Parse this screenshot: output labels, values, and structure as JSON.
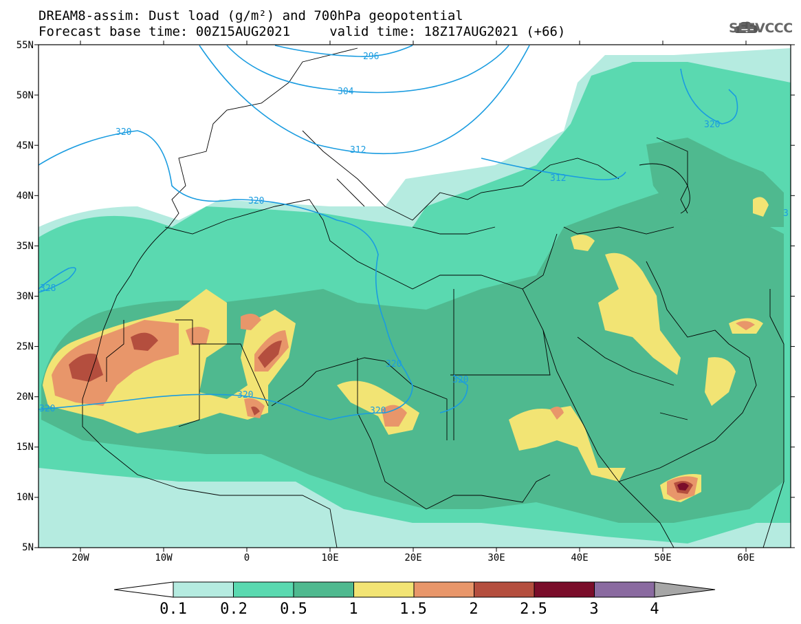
{
  "header": {
    "line1": "DREAM8-assim: Dust load (g/m²) and 700hPa geopotential",
    "line2": "Forecast base time: 00Z15AUG2021     valid time: 18Z17AUG2021 (+66)",
    "logo_text": "SEEVCCC"
  },
  "axes": {
    "lat_labels": [
      "55N",
      "50N",
      "45N",
      "40N",
      "35N",
      "30N",
      "25N",
      "20N",
      "15N",
      "10N",
      "5N"
    ],
    "lon_labels": [
      "20W",
      "10W",
      "0",
      "10E",
      "20E",
      "30E",
      "40E",
      "50E",
      "60E"
    ]
  },
  "contour_labels": [
    "296",
    "304",
    "312",
    "320",
    "320",
    "320",
    "328",
    "320",
    "320",
    "320",
    "320",
    "312",
    "320",
    "3"
  ],
  "colorbar": {
    "labels": [
      "0.1",
      "0.2",
      "0.5",
      "1",
      "1.5",
      "2",
      "2.5",
      "3",
      "4"
    ],
    "colors": [
      "#ffffff",
      "#b5ebe0",
      "#5ad9b0",
      "#4fb98f",
      "#f2e474",
      "#e8966a",
      "#b44e3e",
      "#7a0d2a",
      "#8a6aa0",
      "#a6a6a6"
    ]
  },
  "colors": {
    "c01": "#b5ebe0",
    "c02": "#5ad9b0",
    "c05": "#4fb98f",
    "c10": "#f2e474",
    "c15": "#e8966a",
    "c20": "#b44e3e",
    "c25": "#7a0d2a",
    "contour": "#1a9ce0"
  }
}
